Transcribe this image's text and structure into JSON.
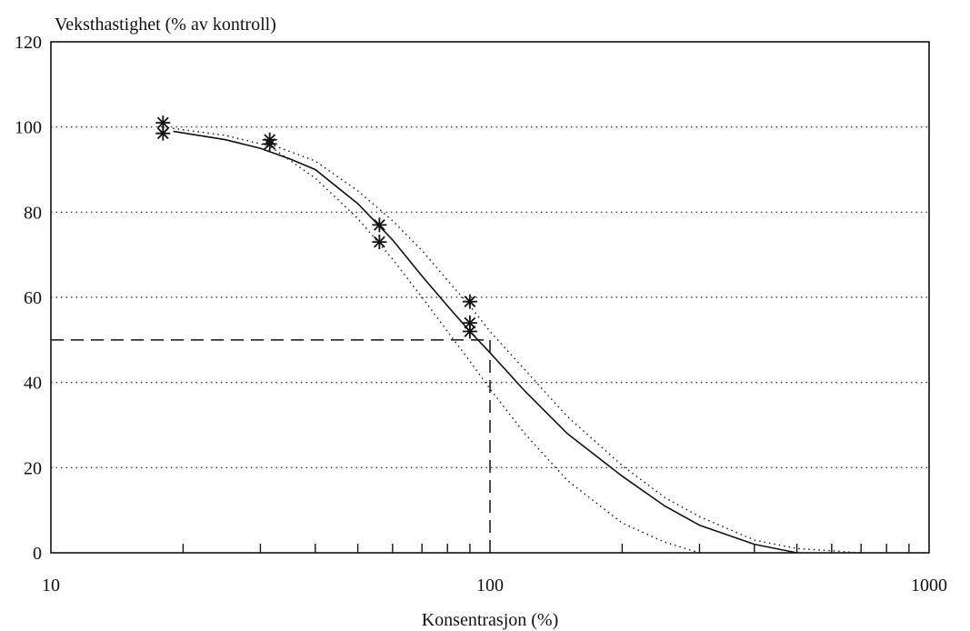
{
  "chart_data": {
    "type": "scatter",
    "title": "",
    "ylabel": "Veksthastighet (% av kontroll)",
    "xlabel": "Konsentrasjon (%)",
    "x_scale": "log",
    "xlim": [
      10,
      1000
    ],
    "ylim": [
      0,
      120
    ],
    "y_ticks": [
      0,
      20,
      40,
      60,
      80,
      100,
      120
    ],
    "y_tick_labels": [
      "0",
      "20",
      "40",
      "60",
      "80",
      "100",
      "120"
    ],
    "x_tick_labels": [
      {
        "value": 10,
        "label": "10"
      },
      {
        "value": 100,
        "label": "100"
      },
      {
        "value": 1000,
        "label": "1000"
      }
    ],
    "x_minor_ticks": [
      20,
      30,
      40,
      50,
      60,
      70,
      80,
      90,
      200,
      300,
      400,
      500,
      600,
      700,
      800,
      900
    ],
    "grid": "horizontal dotted",
    "series": [
      {
        "type": "scatter",
        "marker": "asterisk",
        "points": [
          {
            "x": 18,
            "y": 101
          },
          {
            "x": 18,
            "y": 98.5
          },
          {
            "x": 31.5,
            "y": 97
          },
          {
            "x": 31.5,
            "y": 96
          },
          {
            "x": 56,
            "y": 77
          },
          {
            "x": 56,
            "y": 73
          },
          {
            "x": 90,
            "y": 59
          },
          {
            "x": 90,
            "y": 54
          },
          {
            "x": 90,
            "y": 52
          }
        ]
      },
      {
        "type": "line",
        "style": "solid",
        "x": [
          19,
          25,
          30,
          35,
          40,
          50,
          60,
          70,
          80,
          90,
          100,
          120,
          150,
          200,
          250,
          300,
          400,
          500
        ],
        "y": [
          99,
          97,
          95,
          92.5,
          90,
          82,
          73.5,
          65,
          58,
          52,
          47,
          38,
          28,
          18,
          11,
          6.5,
          2,
          0
        ]
      },
      {
        "type": "line",
        "style": "dotted",
        "x": [
          31.5,
          40,
          50,
          60,
          70,
          80,
          90,
          100,
          120,
          150,
          200,
          250,
          300,
          400,
          500,
          700
        ],
        "y": [
          96,
          92,
          85,
          78,
          71,
          64,
          58,
          52,
          43,
          32,
          20.5,
          13,
          8.5,
          3,
          1,
          0
        ]
      },
      {
        "type": "line",
        "style": "dotted",
        "x": [
          18,
          25,
          31.5,
          40,
          50,
          60,
          70,
          80,
          90,
          100,
          120,
          150,
          200,
          250,
          300
        ],
        "y": [
          100,
          98,
          95.5,
          88,
          78.5,
          69,
          60,
          52,
          45,
          38.5,
          28,
          17,
          7,
          2.5,
          0
        ]
      }
    ],
    "annotations": [
      {
        "type": "dashed_horizontal",
        "y": 50,
        "x_from": 10,
        "x_to": 100
      },
      {
        "type": "dashed_vertical",
        "x": 100,
        "y_from": 0,
        "y_to": 50
      }
    ]
  }
}
